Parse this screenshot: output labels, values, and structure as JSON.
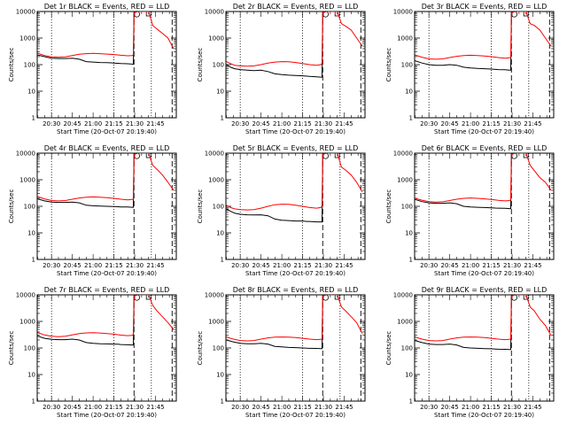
{
  "chart_data": {
    "type": "line",
    "layout": "3x3 grid of panels",
    "shared": {
      "xlabel": "Start Time (20-Oct-07 20:19:40)",
      "ylabel": "Counts/sec",
      "x_ticks": [
        "20:30",
        "20:45",
        "21:00",
        "21:15",
        "21:30",
        "21:45"
      ],
      "x_tick_minutes": [
        30,
        45,
        60,
        75,
        90,
        105
      ],
      "xlim_minutes": [
        19.67,
        120
      ],
      "x_units_note": "minutes after 20:00",
      "y_scale": "log",
      "ylim": [
        1,
        10000
      ],
      "y_ticks": [
        "1",
        "10",
        "100",
        "1000",
        "10000"
      ],
      "y_tick_values": [
        1,
        10,
        100,
        1000,
        10000
      ],
      "series": [
        {
          "color": "#000000"
        },
        {
          "color": "#ff0000"
        }
      ],
      "vlines_dotted_minutes": [
        30,
        75,
        102
      ],
      "vlines_dashed_minutes": [
        89.5,
        117
      ]
    },
    "panels": [
      {
        "title": "Det 1r BLACK = Events, RED = LLD",
        "black": {
          "x": [
            20,
            25,
            30,
            35,
            40,
            45,
            50,
            55,
            60,
            65,
            70,
            75,
            78,
            80,
            85,
            88,
            89,
            89.5,
            92
          ],
          "y": [
            230,
            200,
            175,
            170,
            170,
            175,
            160,
            130,
            125,
            120,
            118,
            115,
            112,
            110,
            108,
            105,
            104,
            9000,
            10000
          ]
        },
        "red": {
          "x": [
            20,
            25,
            30,
            35,
            40,
            45,
            50,
            55,
            60,
            65,
            70,
            75,
            80,
            85,
            88,
            89,
            89.5,
            92,
            95,
            98,
            100,
            103,
            106,
            110,
            114,
            118
          ],
          "y": [
            270,
            220,
            195,
            190,
            195,
            220,
            245,
            260,
            265,
            260,
            250,
            240,
            225,
            215,
            220,
            230,
            9000,
            10000,
            10000,
            10000,
            10000,
            3000,
            2200,
            1500,
            1000,
            400
          ]
        }
      },
      {
        "title": "Det 2r BLACK = Events, RED = LLD",
        "black": {
          "x": [
            20,
            23,
            26,
            30,
            35,
            40,
            45,
            50,
            55,
            60,
            65,
            70,
            75,
            78,
            80,
            85,
            88,
            89,
            89.5,
            92
          ],
          "y": [
            100,
            80,
            70,
            65,
            62,
            60,
            62,
            55,
            45,
            42,
            40,
            39,
            38,
            37,
            36,
            35,
            34,
            34,
            9000,
            10000
          ]
        },
        "red": {
          "x": [
            20,
            23,
            26,
            30,
            35,
            40,
            45,
            50,
            55,
            60,
            65,
            70,
            75,
            80,
            85,
            88,
            89,
            89.5,
            92,
            95,
            98,
            100,
            103,
            106,
            110,
            114,
            118
          ],
          "y": [
            130,
            110,
            95,
            90,
            88,
            90,
            100,
            115,
            125,
            130,
            128,
            120,
            110,
            100,
            95,
            100,
            110,
            9000,
            10000,
            10000,
            10000,
            10000,
            3500,
            2800,
            2000,
            1000,
            500
          ]
        }
      },
      {
        "title": "Det 3r BLACK = Events, RED = LLD",
        "black": {
          "x": [
            20,
            25,
            30,
            35,
            40,
            45,
            50,
            55,
            60,
            65,
            70,
            75,
            78,
            80,
            85,
            88,
            89,
            89.5,
            92
          ],
          "y": [
            140,
            115,
            100,
            95,
            95,
            100,
            95,
            80,
            75,
            72,
            70,
            68,
            66,
            65,
            64,
            62,
            62,
            9000,
            10000
          ]
        },
        "red": {
          "x": [
            20,
            25,
            30,
            35,
            40,
            45,
            50,
            55,
            60,
            65,
            70,
            75,
            80,
            85,
            88,
            89,
            89.5,
            92,
            95,
            98,
            100,
            103,
            106,
            110,
            114,
            118
          ],
          "y": [
            230,
            190,
            165,
            160,
            165,
            185,
            205,
            220,
            225,
            220,
            210,
            200,
            185,
            175,
            180,
            190,
            9000,
            10000,
            10000,
            10000,
            10000,
            3500,
            3000,
            2000,
            1000,
            500
          ]
        }
      },
      {
        "title": "Det 4r BLACK = Events, RED = LLD",
        "black": {
          "x": [
            20,
            25,
            30,
            35,
            40,
            45,
            50,
            55,
            60,
            65,
            70,
            75,
            78,
            80,
            85,
            88,
            89,
            89.5,
            92
          ],
          "y": [
            190,
            160,
            145,
            140,
            140,
            145,
            135,
            110,
            105,
            102,
            100,
            98,
            96,
            95,
            94,
            92,
            92,
            9000,
            10000
          ]
        },
        "red": {
          "x": [
            20,
            25,
            30,
            35,
            40,
            45,
            50,
            55,
            60,
            65,
            70,
            75,
            80,
            85,
            88,
            89,
            89.5,
            92,
            95,
            98,
            100,
            103,
            106,
            110,
            114,
            118
          ],
          "y": [
            230,
            190,
            165,
            160,
            165,
            185,
            205,
            220,
            225,
            220,
            210,
            200,
            185,
            175,
            180,
            190,
            9000,
            10000,
            10000,
            10000,
            10000,
            3500,
            2500,
            1500,
            800,
            400
          ]
        }
      },
      {
        "title": "Det 5r BLACK = Events, RED = LLD",
        "black": {
          "x": [
            20,
            23,
            26,
            30,
            35,
            40,
            45,
            50,
            55,
            60,
            65,
            70,
            75,
            78,
            80,
            85,
            88,
            89,
            89.5,
            92
          ],
          "y": [
            80,
            65,
            55,
            50,
            48,
            47,
            48,
            44,
            33,
            30,
            29,
            28,
            28,
            27,
            27,
            26,
            26,
            26,
            9000,
            10000
          ]
        },
        "red": {
          "x": [
            20,
            23,
            26,
            30,
            35,
            40,
            45,
            50,
            55,
            60,
            65,
            70,
            75,
            80,
            85,
            88,
            89,
            89.5,
            92,
            95,
            98,
            100,
            103,
            106,
            110,
            114,
            118
          ],
          "y": [
            110,
            90,
            80,
            75,
            73,
            75,
            85,
            100,
            115,
            120,
            118,
            110,
            100,
            90,
            85,
            90,
            100,
            9000,
            10000,
            10000,
            10000,
            10000,
            3000,
            2300,
            1500,
            800,
            350
          ]
        }
      },
      {
        "title": "Det 6r BLACK = Events, RED = LLD",
        "black": {
          "x": [
            20,
            25,
            30,
            35,
            40,
            45,
            50,
            55,
            60,
            65,
            70,
            75,
            78,
            80,
            85,
            88,
            89,
            89.5,
            92
          ],
          "y": [
            180,
            150,
            135,
            130,
            130,
            135,
            125,
            100,
            95,
            92,
            90,
            88,
            86,
            85,
            84,
            82,
            82,
            9000,
            10000
          ]
        },
        "red": {
          "x": [
            20,
            25,
            30,
            35,
            40,
            45,
            50,
            55,
            60,
            65,
            70,
            75,
            80,
            85,
            88,
            89,
            89.5,
            92,
            95,
            98,
            100,
            103,
            106,
            110,
            114,
            118
          ],
          "y": [
            200,
            170,
            150,
            145,
            148,
            165,
            185,
            200,
            205,
            200,
            190,
            180,
            168,
            160,
            165,
            175,
            9000,
            10000,
            10000,
            10000,
            10000,
            3500,
            2200,
            1200,
            800,
            400
          ]
        }
      },
      {
        "title": "Det 7r BLACK = Events, RED = LLD",
        "black": {
          "x": [
            20,
            25,
            30,
            35,
            40,
            45,
            50,
            55,
            60,
            65,
            70,
            75,
            78,
            80,
            85,
            88,
            89,
            89.5,
            92
          ],
          "y": [
            280,
            230,
            210,
            205,
            205,
            215,
            200,
            160,
            150,
            145,
            142,
            140,
            138,
            135,
            132,
            130,
            130,
            9000,
            10000
          ]
        },
        "red": {
          "x": [
            20,
            25,
            30,
            35,
            40,
            45,
            50,
            55,
            60,
            65,
            70,
            75,
            80,
            85,
            88,
            89,
            89.5,
            92,
            95,
            98,
            100,
            103,
            106,
            110,
            114,
            118
          ],
          "y": [
            380,
            310,
            275,
            265,
            275,
            310,
            350,
            370,
            375,
            365,
            350,
            330,
            305,
            290,
            300,
            320,
            9000,
            10000,
            10000,
            10000,
            10000,
            4000,
            2500,
            1500,
            900,
            500
          ]
        }
      },
      {
        "title": "Det 8r BLACK = Events, RED = LLD",
        "black": {
          "x": [
            20,
            25,
            30,
            35,
            40,
            45,
            50,
            55,
            60,
            65,
            70,
            75,
            78,
            80,
            85,
            88,
            89,
            89.5,
            92
          ],
          "y": [
            200,
            170,
            150,
            145,
            145,
            150,
            140,
            115,
            110,
            105,
            103,
            100,
            98,
            97,
            96,
            95,
            95,
            9000,
            10000
          ]
        },
        "red": {
          "x": [
            20,
            25,
            30,
            35,
            40,
            45,
            50,
            55,
            60,
            65,
            70,
            75,
            80,
            85,
            88,
            89,
            89.5,
            92,
            95,
            98,
            100,
            103,
            106,
            110,
            114,
            118
          ],
          "y": [
            260,
            215,
            190,
            185,
            190,
            215,
            240,
            255,
            260,
            255,
            245,
            230,
            215,
            205,
            210,
            220,
            9000,
            10000,
            10000,
            10000,
            10000,
            3500,
            2500,
            1500,
            900,
            350
          ]
        }
      },
      {
        "title": "Det 9r BLACK = Events, RED = LLD",
        "black": {
          "x": [
            20,
            25,
            30,
            35,
            40,
            45,
            50,
            55,
            60,
            65,
            70,
            75,
            78,
            80,
            85,
            88,
            89,
            89.5,
            92
          ],
          "y": [
            190,
            160,
            140,
            135,
            135,
            140,
            130,
            105,
            100,
            97,
            95,
            93,
            91,
            90,
            89,
            88,
            88,
            9000,
            10000
          ]
        },
        "red": {
          "x": [
            20,
            25,
            30,
            35,
            40,
            45,
            50,
            55,
            60,
            65,
            70,
            75,
            80,
            85,
            88,
            89,
            89.5,
            92,
            95,
            98,
            100,
            103,
            106,
            110,
            114,
            118
          ],
          "y": [
            260,
            215,
            190,
            185,
            190,
            215,
            240,
            255,
            260,
            255,
            245,
            230,
            215,
            205,
            210,
            220,
            9000,
            10000,
            10000,
            10000,
            10000,
            3500,
            2500,
            1200,
            700,
            300
          ]
        }
      }
    ]
  }
}
